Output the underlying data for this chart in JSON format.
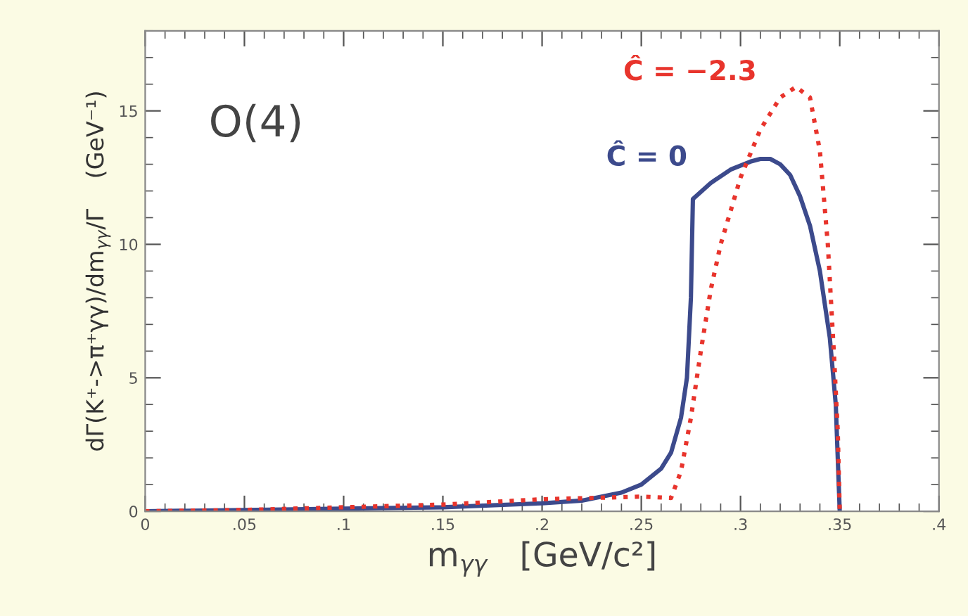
{
  "chart_data": {
    "type": "line",
    "xlabel": "m$_{γγ}$   [GeV/c²]",
    "ylabel": "dΓ(K⁺->π⁺γγ)/dm$_{γγ}$/Γ    (GeV⁻¹)",
    "annotations": [
      "O(4)"
    ],
    "xlim": [
      0,
      0.4
    ],
    "ylim": [
      0,
      18
    ],
    "xticks": [
      0,
      {
        "value": 0.05,
        "label": ".05"
      },
      {
        "value": 0.1,
        "label": ".1"
      },
      {
        "value": 0.15,
        "label": ".15"
      },
      {
        "value": 0.2,
        "label": ".2"
      },
      {
        "value": 0.25,
        "label": ".25"
      },
      {
        "value": 0.3,
        "label": ".3"
      },
      {
        "value": 0.35,
        "label": ".35"
      },
      {
        "value": 0.4,
        "label": ".4"
      }
    ],
    "yticks": [
      0,
      5,
      10,
      15
    ],
    "grid": false,
    "legend": false,
    "series": [
      {
        "name": "Ĉ = 0",
        "color": "#3c4a8c",
        "line_style": "solid",
        "x": [
          0,
          0.05,
          0.1,
          0.15,
          0.2,
          0.22,
          0.24,
          0.25,
          0.26,
          0.265,
          0.27,
          0.273,
          0.275,
          0.276,
          0.285,
          0.295,
          0.305,
          0.31,
          0.315,
          0.32,
          0.325,
          0.33,
          0.335,
          0.34,
          0.345,
          0.348,
          0.35
        ],
        "values": [
          0,
          0.05,
          0.1,
          0.15,
          0.3,
          0.4,
          0.7,
          1.0,
          1.6,
          2.2,
          3.5,
          5,
          8,
          11.7,
          12.3,
          12.8,
          13.1,
          13.2,
          13.2,
          13.0,
          12.6,
          11.8,
          10.7,
          9.0,
          6.5,
          4,
          0
        ]
      },
      {
        "name": "Ĉ = −2.3",
        "color": "#e8342c",
        "line_style": "dotted",
        "x": [
          0,
          0.05,
          0.1,
          0.15,
          0.2,
          0.25,
          0.265,
          0.27,
          0.275,
          0.28,
          0.285,
          0.29,
          0.3,
          0.31,
          0.32,
          0.328,
          0.335,
          0.34,
          0.344,
          0.347,
          0.349,
          0.35
        ],
        "values": [
          0,
          0.05,
          0.15,
          0.25,
          0.45,
          0.55,
          0.5,
          1.5,
          3.5,
          6,
          8.3,
          10,
          12.5,
          14.3,
          15.5,
          15.9,
          15.5,
          13.5,
          10,
          6,
          3,
          0
        ]
      }
    ]
  }
}
